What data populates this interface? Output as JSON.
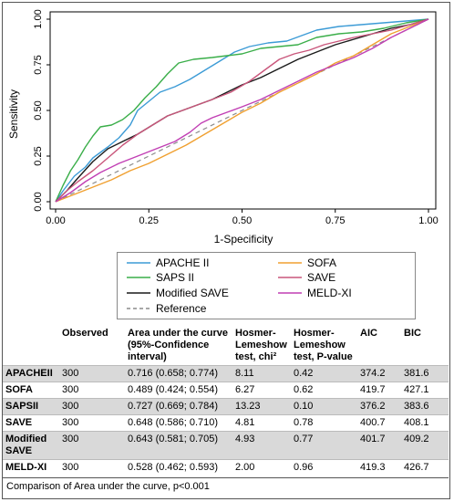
{
  "chart_data": {
    "type": "line",
    "xlabel": "1-Specificity",
    "ylabel": "Sensitivity",
    "xlim": [
      0,
      1
    ],
    "ylim": [
      0,
      1
    ],
    "xticks": [
      "0.00",
      "0.25",
      "0.50",
      "0.75",
      "1.00"
    ],
    "yticks": [
      "0.00",
      "0.25",
      "0.50",
      "0.75",
      "1.00"
    ],
    "grid": false,
    "legend_position": "bottom",
    "series": [
      {
        "name": "APACHE II",
        "color": "#3c9bd6",
        "points": [
          [
            0,
            0
          ],
          [
            0.02,
            0.06
          ],
          [
            0.05,
            0.14
          ],
          [
            0.08,
            0.19
          ],
          [
            0.1,
            0.24
          ],
          [
            0.14,
            0.3
          ],
          [
            0.17,
            0.35
          ],
          [
            0.2,
            0.42
          ],
          [
            0.22,
            0.5
          ],
          [
            0.25,
            0.55
          ],
          [
            0.28,
            0.6
          ],
          [
            0.32,
            0.63
          ],
          [
            0.36,
            0.67
          ],
          [
            0.4,
            0.72
          ],
          [
            0.44,
            0.77
          ],
          [
            0.48,
            0.82
          ],
          [
            0.52,
            0.85
          ],
          [
            0.57,
            0.87
          ],
          [
            0.62,
            0.88
          ],
          [
            0.66,
            0.91
          ],
          [
            0.7,
            0.94
          ],
          [
            0.76,
            0.96
          ],
          [
            0.82,
            0.97
          ],
          [
            0.88,
            0.98
          ],
          [
            0.94,
            0.99
          ],
          [
            1,
            1
          ]
        ]
      },
      {
        "name": "SAPS II",
        "color": "#3aae49",
        "points": [
          [
            0,
            0
          ],
          [
            0.02,
            0.09
          ],
          [
            0.04,
            0.17
          ],
          [
            0.06,
            0.23
          ],
          [
            0.08,
            0.3
          ],
          [
            0.1,
            0.36
          ],
          [
            0.12,
            0.41
          ],
          [
            0.15,
            0.42
          ],
          [
            0.18,
            0.45
          ],
          [
            0.21,
            0.5
          ],
          [
            0.24,
            0.57
          ],
          [
            0.27,
            0.63
          ],
          [
            0.3,
            0.7
          ],
          [
            0.33,
            0.76
          ],
          [
            0.37,
            0.78
          ],
          [
            0.42,
            0.79
          ],
          [
            0.46,
            0.8
          ],
          [
            0.5,
            0.81
          ],
          [
            0.55,
            0.84
          ],
          [
            0.6,
            0.85
          ],
          [
            0.65,
            0.86
          ],
          [
            0.7,
            0.9
          ],
          [
            0.76,
            0.92
          ],
          [
            0.82,
            0.93
          ],
          [
            0.88,
            0.95
          ],
          [
            0.94,
            0.98
          ],
          [
            1,
            1
          ]
        ]
      },
      {
        "name": "Modified SAVE",
        "color": "#1a1a1a",
        "points": [
          [
            0,
            0
          ],
          [
            0.03,
            0.06
          ],
          [
            0.06,
            0.13
          ],
          [
            0.1,
            0.22
          ],
          [
            0.14,
            0.29
          ],
          [
            0.18,
            0.33
          ],
          [
            0.22,
            0.37
          ],
          [
            0.26,
            0.42
          ],
          [
            0.3,
            0.47
          ],
          [
            0.34,
            0.5
          ],
          [
            0.38,
            0.53
          ],
          [
            0.42,
            0.56
          ],
          [
            0.46,
            0.6
          ],
          [
            0.5,
            0.64
          ],
          [
            0.55,
            0.68
          ],
          [
            0.6,
            0.73
          ],
          [
            0.65,
            0.78
          ],
          [
            0.7,
            0.82
          ],
          [
            0.75,
            0.86
          ],
          [
            0.8,
            0.89
          ],
          [
            0.85,
            0.92
          ],
          [
            0.9,
            0.95
          ],
          [
            0.95,
            0.97
          ],
          [
            1,
            1
          ]
        ]
      },
      {
        "name": "SOFA",
        "color": "#f0a030",
        "points": [
          [
            0,
            0
          ],
          [
            0.05,
            0.04
          ],
          [
            0.1,
            0.08
          ],
          [
            0.15,
            0.12
          ],
          [
            0.2,
            0.17
          ],
          [
            0.25,
            0.21
          ],
          [
            0.3,
            0.26
          ],
          [
            0.35,
            0.31
          ],
          [
            0.4,
            0.37
          ],
          [
            0.45,
            0.43
          ],
          [
            0.5,
            0.49
          ],
          [
            0.55,
            0.54
          ],
          [
            0.6,
            0.6
          ],
          [
            0.65,
            0.65
          ],
          [
            0.7,
            0.7
          ],
          [
            0.75,
            0.76
          ],
          [
            0.8,
            0.8
          ],
          [
            0.85,
            0.86
          ],
          [
            0.9,
            0.92
          ],
          [
            0.95,
            0.96
          ],
          [
            1,
            1
          ]
        ]
      },
      {
        "name": "SAVE",
        "color": "#c9567b",
        "points": [
          [
            0,
            0
          ],
          [
            0.03,
            0.06
          ],
          [
            0.06,
            0.11
          ],
          [
            0.1,
            0.17
          ],
          [
            0.14,
            0.24
          ],
          [
            0.18,
            0.31
          ],
          [
            0.22,
            0.37
          ],
          [
            0.26,
            0.42
          ],
          [
            0.3,
            0.47
          ],
          [
            0.34,
            0.5
          ],
          [
            0.38,
            0.53
          ],
          [
            0.42,
            0.56
          ],
          [
            0.47,
            0.6
          ],
          [
            0.52,
            0.66
          ],
          [
            0.56,
            0.72
          ],
          [
            0.6,
            0.78
          ],
          [
            0.64,
            0.81
          ],
          [
            0.68,
            0.83
          ],
          [
            0.72,
            0.86
          ],
          [
            0.76,
            0.88
          ],
          [
            0.8,
            0.9
          ],
          [
            0.85,
            0.92
          ],
          [
            0.9,
            0.94
          ],
          [
            0.95,
            0.97
          ],
          [
            1,
            1
          ]
        ]
      },
      {
        "name": "MELD-XI",
        "color": "#c13fb4",
        "points": [
          [
            0,
            0
          ],
          [
            0.04,
            0.05
          ],
          [
            0.08,
            0.11
          ],
          [
            0.12,
            0.16
          ],
          [
            0.17,
            0.21
          ],
          [
            0.22,
            0.25
          ],
          [
            0.27,
            0.29
          ],
          [
            0.32,
            0.33
          ],
          [
            0.36,
            0.38
          ],
          [
            0.39,
            0.43
          ],
          [
            0.42,
            0.46
          ],
          [
            0.46,
            0.49
          ],
          [
            0.5,
            0.52
          ],
          [
            0.55,
            0.56
          ],
          [
            0.6,
            0.61
          ],
          [
            0.65,
            0.66
          ],
          [
            0.7,
            0.71
          ],
          [
            0.75,
            0.75
          ],
          [
            0.8,
            0.79
          ],
          [
            0.85,
            0.84
          ],
          [
            0.9,
            0.9
          ],
          [
            0.95,
            0.95
          ],
          [
            1,
            1
          ]
        ]
      },
      {
        "name": "Reference",
        "color": "#8c8c8c",
        "dashed": true,
        "points": [
          [
            0,
            0
          ],
          [
            1,
            1
          ]
        ]
      }
    ]
  },
  "legend": {
    "items": [
      {
        "label": "APACHE II",
        "color": "#3c9bd6"
      },
      {
        "label": "SOFA",
        "color": "#f0a030"
      },
      {
        "label": "SAPS II",
        "color": "#3aae49"
      },
      {
        "label": "SAVE",
        "color": "#c9567b"
      },
      {
        "label": "Modified SAVE",
        "color": "#1a1a1a"
      },
      {
        "label": "MELD-XI",
        "color": "#c13fb4"
      },
      {
        "label": "Reference",
        "color": "#8c8c8c"
      }
    ]
  },
  "table": {
    "headers": {
      "col0": "",
      "col1": "Observed",
      "col2": "Area under the curve (95%-Confidence interval)",
      "col3": "Hosmer-Lemeshow test, chi²",
      "col4": "Hosmer-Lemeshow test, P-value",
      "col5": "AIC",
      "col6": "BIC"
    },
    "rows": [
      {
        "model": "APACHEII",
        "observed": "300",
        "auc": "0.716 (0.658; 0.774)",
        "chi2": "8.11",
        "p": "0.42",
        "aic": "374.2",
        "bic": "381.6"
      },
      {
        "model": "SOFA",
        "observed": "300",
        "auc": "0.489 (0.424; 0.554)",
        "chi2": "6.27",
        "p": "0.62",
        "aic": "419.7",
        "bic": "427.1"
      },
      {
        "model": "SAPSII",
        "observed": "300",
        "auc": "0.727 (0.669; 0.784)",
        "chi2": "13.23",
        "p": "0.10",
        "aic": "376.2",
        "bic": "383.6"
      },
      {
        "model": "SAVE",
        "observed": "300",
        "auc": "0.648 (0.586; 0.710)",
        "chi2": "4.81",
        "p": "0.78",
        "aic": "400.7",
        "bic": "408.1"
      },
      {
        "model": "Modified SAVE",
        "observed": "300",
        "auc": "0.643 (0.581; 0.705)",
        "chi2": "4.93",
        "p": "0.77",
        "aic": "401.7",
        "bic": "409.2"
      },
      {
        "model": "MELD-XI",
        "observed": "300",
        "auc": "0.528 (0.462; 0.593)",
        "chi2": "2.00",
        "p": "0.96",
        "aic": "419.3",
        "bic": "426.7"
      }
    ]
  },
  "footnote": "Comparison of Area under the curve, p<0.001"
}
